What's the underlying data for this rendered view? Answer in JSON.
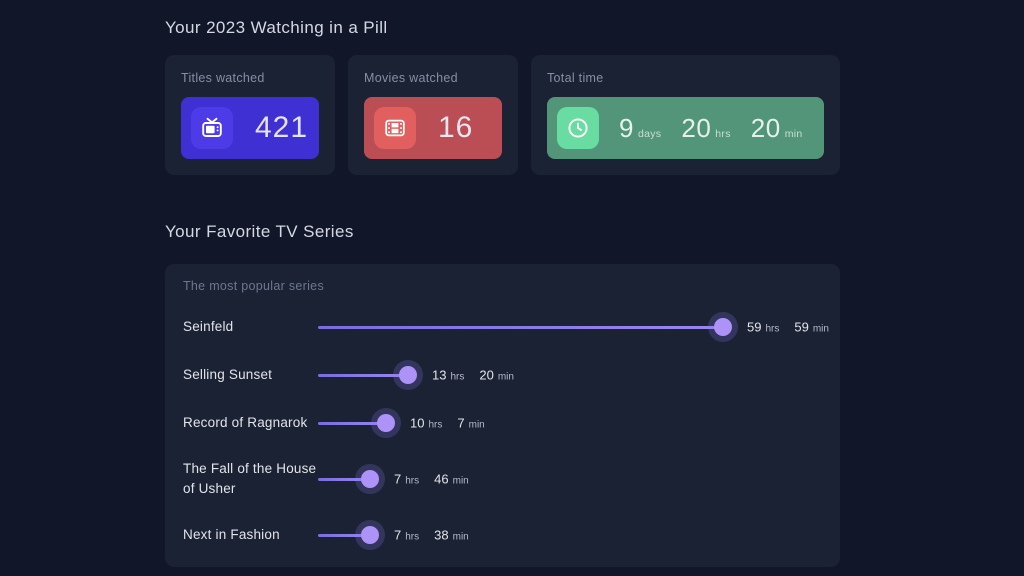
{
  "colors": {
    "page_bg": "#111728",
    "card_bg": "#1b2234",
    "purple_pill": "#3e30d2",
    "red_pill": "#bb4e55",
    "green_pill": "#539578",
    "accent_lollipop": "#ad93f8"
  },
  "summary": {
    "title": "Your 2023 Watching in a Pill",
    "cards": [
      {
        "label": "Titles watched",
        "value": "421",
        "icon": "tv-icon"
      },
      {
        "label": "Movies watched",
        "value": "16",
        "icon": "film-icon"
      },
      {
        "label": "Total time",
        "icon": "clock-icon",
        "parts": [
          {
            "value": "9",
            "unit": "days"
          },
          {
            "value": "20",
            "unit": "hrs"
          },
          {
            "value": "20",
            "unit": "min"
          }
        ]
      }
    ]
  },
  "favorites": {
    "title": "Your Favorite TV Series",
    "subtitle": "The most popular series",
    "series": [
      {
        "name": "Seinfeld",
        "hrs": 59,
        "hrs_unit": "hrs",
        "min": 59,
        "min_unit": "min"
      },
      {
        "name": "Selling Sunset",
        "hrs": 13,
        "hrs_unit": "hrs",
        "min": 20,
        "min_unit": "min"
      },
      {
        "name": "Record of Ragnarok",
        "hrs": 10,
        "hrs_unit": "hrs",
        "min": 7,
        "min_unit": "min"
      },
      {
        "name": "The Fall of the House of Usher",
        "hrs": 7,
        "hrs_unit": "hrs",
        "min": 46,
        "min_unit": "min"
      },
      {
        "name": "Next in Fashion",
        "hrs": 7,
        "hrs_unit": "hrs",
        "min": 38,
        "min_unit": "min"
      }
    ]
  },
  "chart_data": {
    "type": "bar",
    "title": "Your Favorite TV Series",
    "subtitle": "The most popular series",
    "categories": [
      "Seinfeld",
      "Selling Sunset",
      "Record of Ragnarok",
      "The Fall of the House of Usher",
      "Next in Fashion"
    ],
    "values_minutes": [
      3599,
      800,
      607,
      466,
      458
    ],
    "value_labels": [
      "59 hrs 59 min",
      "13 hrs 20 min",
      "10 hrs 7 min",
      "7 hrs 46 min",
      "7 hrs 38 min"
    ],
    "xlabel": "",
    "ylabel": "",
    "xmax_hours": 60,
    "orientation": "horizontal-lollipop",
    "grid": false,
    "legend": false
  }
}
